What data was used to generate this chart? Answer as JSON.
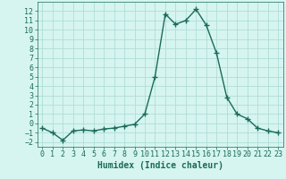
{
  "x": [
    0,
    1,
    2,
    3,
    4,
    5,
    6,
    7,
    8,
    9,
    10,
    11,
    12,
    13,
    14,
    15,
    16,
    17,
    18,
    19,
    20,
    21,
    22,
    23
  ],
  "y": [
    -0.5,
    -1.0,
    -1.8,
    -0.8,
    -0.7,
    -0.8,
    -0.6,
    -0.5,
    -0.3,
    -0.1,
    1.0,
    5.0,
    11.7,
    10.6,
    11.0,
    12.2,
    10.5,
    7.5,
    2.8,
    1.0,
    0.5,
    -0.5,
    -0.8,
    -1.0
  ],
  "line_color": "#1a6b5a",
  "marker": "+",
  "markersize": 4,
  "linewidth": 1.0,
  "bg_color": "#d6f5f0",
  "grid_color": "#b0ddd8",
  "xlabel": "Humidex (Indice chaleur)",
  "xlim": [
    -0.5,
    23.5
  ],
  "ylim": [
    -2.5,
    13.0
  ],
  "xticks": [
    0,
    1,
    2,
    3,
    4,
    5,
    6,
    7,
    8,
    9,
    10,
    11,
    12,
    13,
    14,
    15,
    16,
    17,
    18,
    19,
    20,
    21,
    22,
    23
  ],
  "yticks": [
    -2,
    -1,
    0,
    1,
    2,
    3,
    4,
    5,
    6,
    7,
    8,
    9,
    10,
    11,
    12
  ],
  "xlabel_fontsize": 7,
  "tick_fontsize": 6
}
